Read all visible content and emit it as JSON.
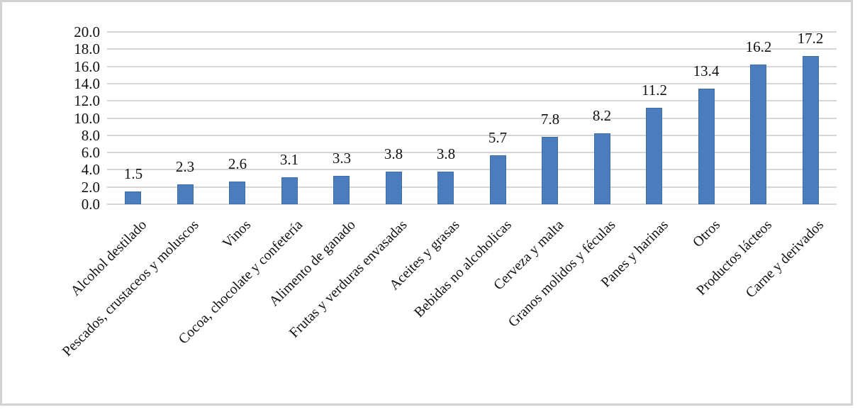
{
  "chart_data": {
    "type": "bar",
    "title": "",
    "xlabel": "",
    "ylabel": "",
    "categories": [
      "Alcohol destilado",
      "Pescados, crustaceos y moluscos",
      "Vinos",
      "Cocoa, chocolate y confetería",
      "Alimento de ganado",
      "Frutas y verduras envasadas",
      "Aceites y grasas",
      "Bebidas no alcoholicas",
      "Cerveza y malta",
      "Granos molidos y féculas",
      "Panes y harinas",
      "Otros",
      "Productos lácteos",
      "Carne y derivados"
    ],
    "values": [
      1.5,
      2.3,
      2.6,
      3.1,
      3.3,
      3.8,
      3.8,
      5.7,
      7.8,
      8.2,
      11.2,
      13.4,
      16.2,
      17.2
    ],
    "data_labels": [
      "1.5",
      "2.3",
      "2.6",
      "3.1",
      "3.3",
      "3.8",
      "3.8",
      "5.7",
      "7.8",
      "8.2",
      "11.2",
      "13.4",
      "16.2",
      "17.2"
    ],
    "ylim": [
      0,
      20
    ],
    "y_tick_step": 2,
    "y_tick_labels": [
      "0.0",
      "2.0",
      "4.0",
      "6.0",
      "8.0",
      "10.0",
      "12.0",
      "14.0",
      "16.0",
      "18.0",
      "20.0"
    ],
    "grid": true,
    "legend": "none",
    "x_label_rotation_deg": 45,
    "colors": {
      "bar_fill": "#4A7CBE",
      "bar_border": "#3E6CA4",
      "gridline": "#D6D6D6",
      "chart_border": "#D2D2D2",
      "text": "#111111",
      "background": "#FFFFFF"
    }
  }
}
